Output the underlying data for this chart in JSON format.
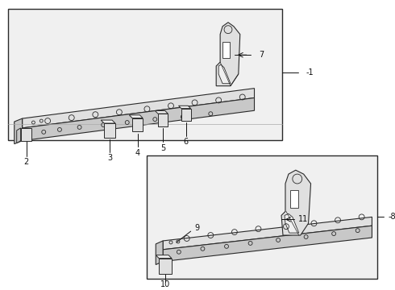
{
  "bg_color": "#ffffff",
  "line_color": "#2a2a2a",
  "fill_light": "#f0f0f0",
  "fill_mid": "#e0e0e0",
  "fill_dark": "#c8c8c8",
  "label_color": "#111111",
  "fs": 7.0
}
